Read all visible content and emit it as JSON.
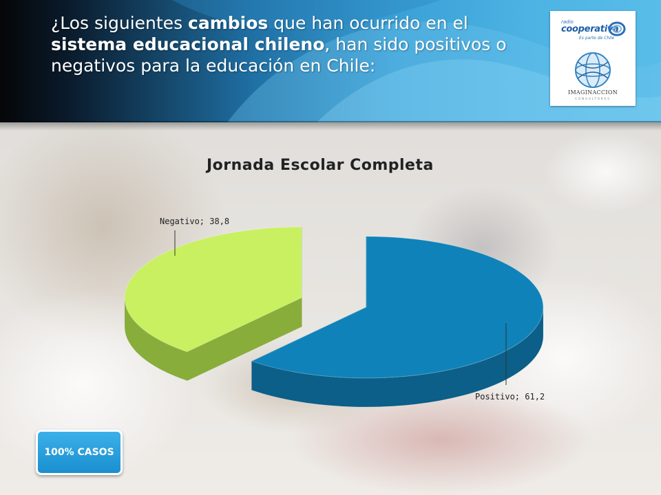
{
  "header": {
    "question_parts": [
      {
        "text": "¿Los siguientes ",
        "bold": false
      },
      {
        "text": "cambios",
        "bold": true
      },
      {
        "text": " que han ocurrido en el ",
        "bold": false
      },
      {
        "text": "sistema educacional chileno",
        "bold": true
      },
      {
        "text": ", han sido positivos o negativos para la educación en Chile:",
        "bold": false
      }
    ]
  },
  "logo": {
    "radio": "radio",
    "brand": "cooperativa",
    "tagline": "Es parte de Chile",
    "consultancy": "IMAGINACCION",
    "consultancy_sub": "CONSULTORES"
  },
  "badge": {
    "label": "100% CASOS"
  },
  "chart_data": {
    "type": "pie",
    "title": "Jornada Escolar Completa",
    "style": "3d exploded",
    "slices": [
      {
        "name": "Positivo",
        "value": 61.2,
        "label": "Positivo; 61,2",
        "color": "#0f82b9",
        "side_color": "#0b5f88"
      },
      {
        "name": "Negativo",
        "value": 38.8,
        "label": "Negativo; 38,8",
        "color": "#c8f060",
        "side_color": "#88ad3a"
      }
    ]
  },
  "colors": {
    "header_dark": "#050608",
    "header_blue": "#3aa0d6",
    "badge_blue": "#1a8fd0"
  }
}
